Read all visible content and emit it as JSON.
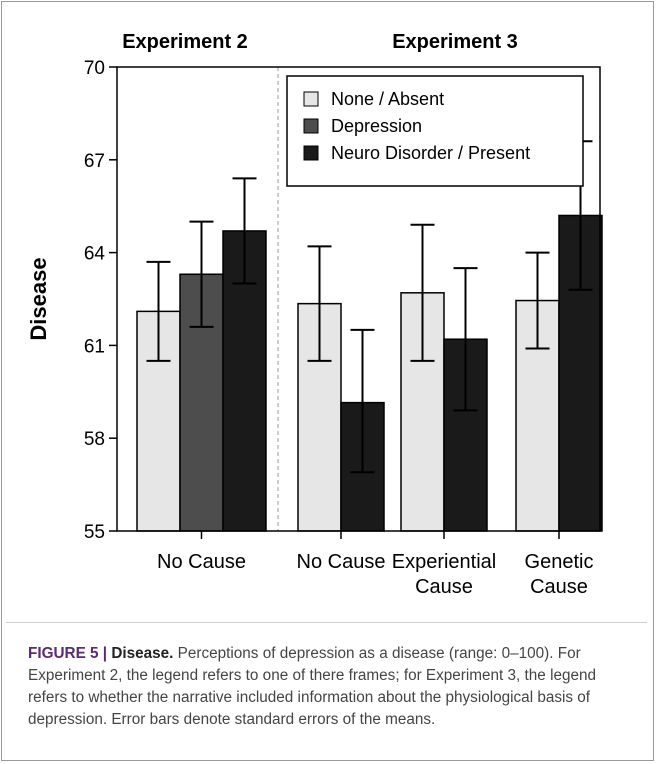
{
  "chart_data": {
    "type": "bar",
    "ylabel": "Disease",
    "ylim": [
      55,
      70
    ],
    "yticks": [
      55,
      58,
      61,
      64,
      67,
      70
    ],
    "panels": [
      {
        "label": "Experiment 2",
        "groups": [
          {
            "label_lines": [
              "No Cause"
            ],
            "bars": [
              {
                "series": "None / Absent",
                "value": 62.1,
                "err_low": 60.5,
                "err_high": 63.7
              },
              {
                "series": "Depression",
                "value": 63.3,
                "err_low": 61.6,
                "err_high": 65.0
              },
              {
                "series": "Neuro Disorder / Present",
                "value": 64.7,
                "err_low": 63.0,
                "err_high": 66.4
              }
            ]
          }
        ]
      },
      {
        "label": "Experiment 3",
        "groups": [
          {
            "label_lines": [
              "No Cause"
            ],
            "bars": [
              {
                "series": "None / Absent",
                "value": 62.35,
                "err_low": 60.5,
                "err_high": 64.2
              },
              {
                "series": "Neuro Disorder / Present",
                "value": 59.15,
                "err_low": 56.9,
                "err_high": 61.5
              }
            ]
          },
          {
            "label_lines": [
              "Experiential",
              "Cause"
            ],
            "bars": [
              {
                "series": "None / Absent",
                "value": 62.7,
                "err_low": 60.5,
                "err_high": 64.9
              },
              {
                "series": "Neuro Disorder / Present",
                "value": 61.2,
                "err_low": 58.9,
                "err_high": 63.5
              }
            ]
          },
          {
            "label_lines": [
              "Genetic",
              "Cause"
            ],
            "bars": [
              {
                "series": "None / Absent",
                "value": 62.45,
                "err_low": 60.9,
                "err_high": 64.0
              },
              {
                "series": "Neuro Disorder / Present",
                "value": 65.2,
                "err_low": 62.8,
                "err_high": 67.6
              }
            ]
          }
        ]
      }
    ],
    "legend": {
      "placement": "top-right",
      "entries": [
        {
          "name": "None / Absent",
          "color": "#e6e6e6"
        },
        {
          "name": "Depression",
          "color": "#4d4d4d"
        },
        {
          "name": "Neuro Disorder / Present",
          "color": "#1a1a1a"
        }
      ]
    },
    "separator": "dashed"
  },
  "caption": {
    "label": "FIGURE 5 |",
    "title": "Disease.",
    "text": "Perceptions of depression as a disease (range: 0–100). For Experiment 2, the legend refers to one of there frames; for Experiment 3, the legend refers to whether the narrative included information about the physiological basis of depression. Error bars denote standard errors of the means."
  }
}
